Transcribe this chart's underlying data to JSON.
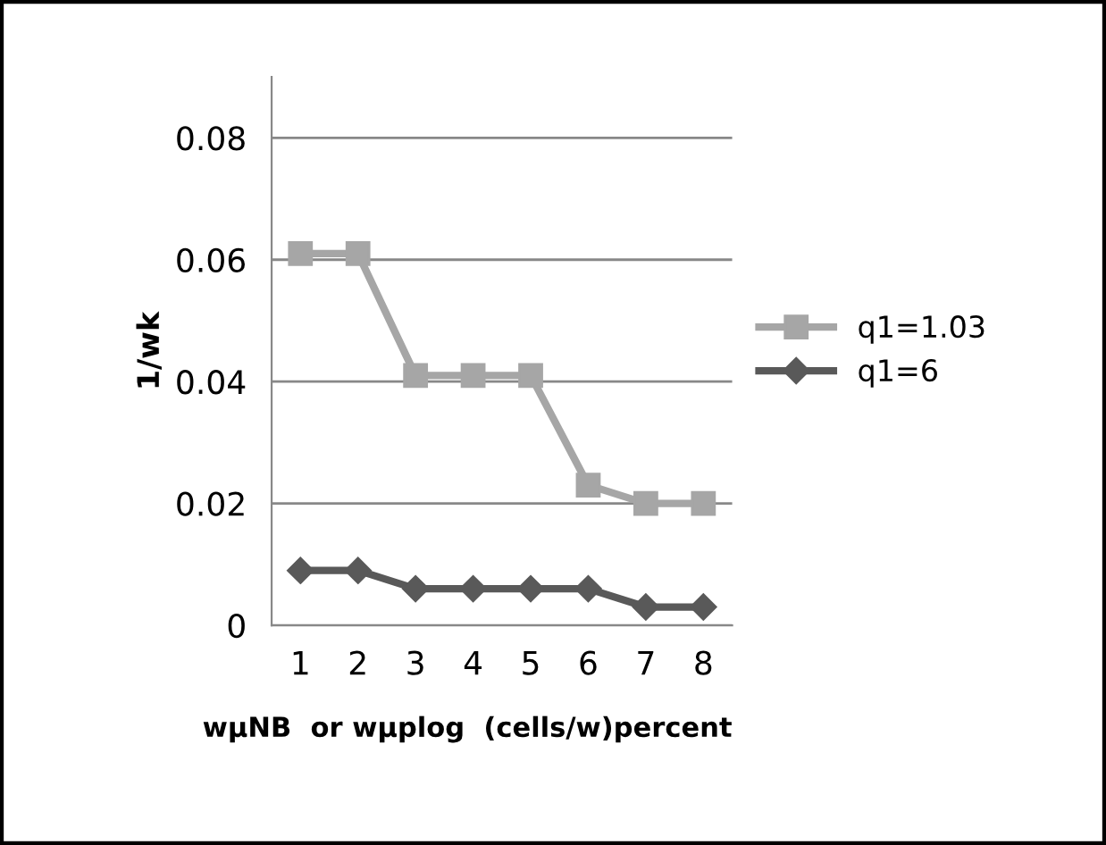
{
  "chart_data": {
    "type": "line",
    "xlabel": "wμNB  or wμplog  (cells/w)percent",
    "ylabel": "1/wk",
    "categories": [
      "1",
      "2",
      "3",
      "4",
      "5",
      "6",
      "7",
      "8"
    ],
    "series": [
      {
        "name": "q1=1.03",
        "color": "#a6a6a6",
        "marker": "square",
        "values": [
          0.061,
          0.061,
          0.041,
          0.041,
          0.041,
          0.023,
          0.02,
          0.02
        ]
      },
      {
        "name": "q1=6",
        "color": "#595959",
        "marker": "diamond",
        "values": [
          0.009,
          0.009,
          0.006,
          0.006,
          0.006,
          0.006,
          0.003,
          0.003
        ]
      }
    ],
    "ylim": [
      0,
      0.09
    ],
    "yticks": [
      0,
      0.02,
      0.04,
      0.06,
      0.08
    ],
    "grid": "y",
    "legend": "right",
    "line_style": "solid"
  }
}
